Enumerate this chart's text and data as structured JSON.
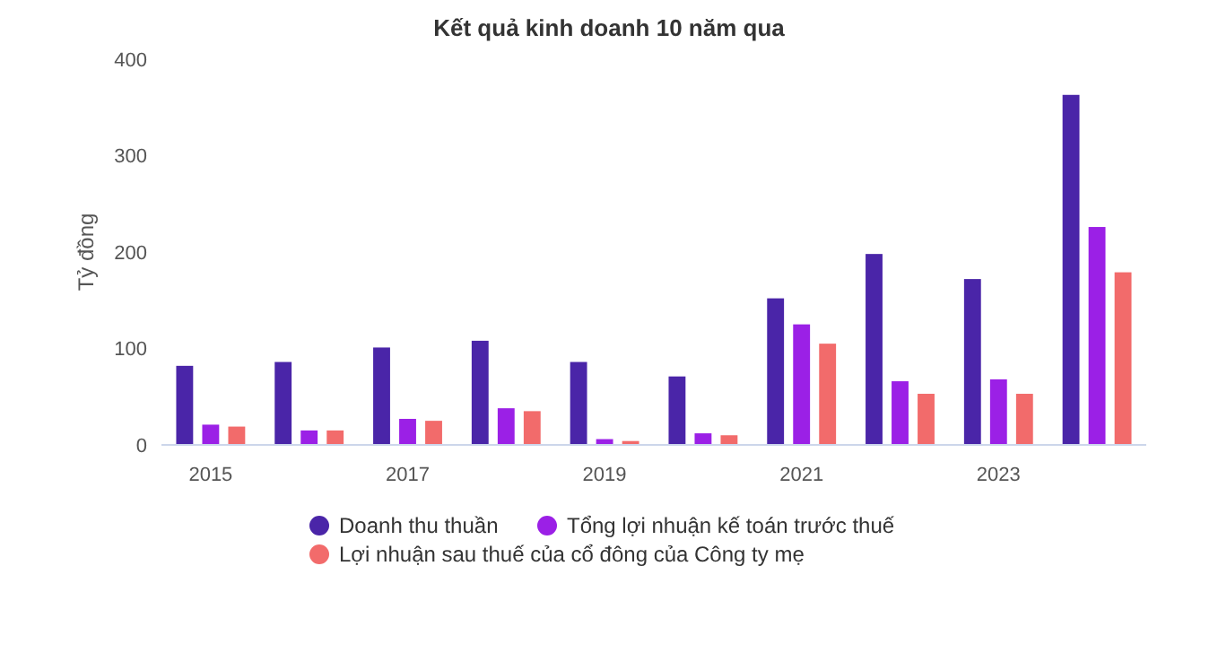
{
  "chart_data": {
    "type": "bar",
    "title": "Kết quả kinh doanh 10 năm qua",
    "ylabel": "Tỷ đồng",
    "categories": [
      "2015",
      null,
      "2017",
      null,
      "2019",
      null,
      "2021",
      null,
      "2023",
      null
    ],
    "series": [
      {
        "name": "Doanh thu thuần",
        "color": "#4a25a8",
        "values": [
          82,
          86,
          101,
          108,
          86,
          71,
          152,
          198,
          172,
          363
        ]
      },
      {
        "name": "Tổng lợi nhuận kế toán trước thuế",
        "color": "#9b20e6",
        "values": [
          21,
          15,
          27,
          38,
          6,
          12,
          125,
          66,
          68,
          226
        ]
      },
      {
        "name": "Lợi nhuận sau thuế của cổ đông của Công ty mẹ",
        "color": "#f26b6b",
        "values": [
          19,
          15,
          25,
          35,
          4,
          10,
          105,
          53,
          53,
          179
        ]
      }
    ],
    "ylim": [
      0,
      400
    ],
    "yticks": [
      0,
      100,
      200,
      300,
      400
    ],
    "legend": "bottom"
  }
}
